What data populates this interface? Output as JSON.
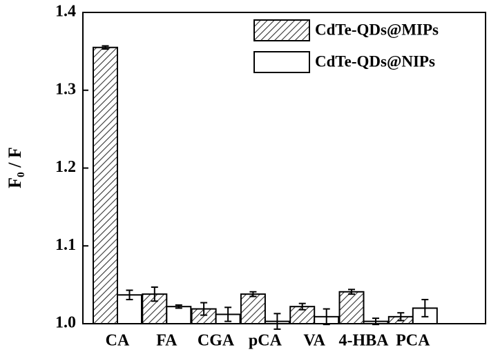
{
  "chart_data": {
    "type": "bar",
    "y_label": "F₀ / F",
    "categories": [
      "CA",
      "FA",
      "CGA",
      "pCA",
      "VA",
      "4-HBA",
      "PCA"
    ],
    "series": [
      {
        "name": "CdTe-QDs@MIPs",
        "color": "#333333",
        "hatch": true,
        "values": [
          1.355,
          1.038,
          1.019,
          1.038,
          1.022,
          1.041,
          1.009
        ],
        "errors": [
          0.002,
          0.009,
          0.008,
          0.003,
          0.004,
          0.003,
          0.005
        ]
      },
      {
        "name": "CdTe-QDs@NIPs",
        "color": "#000000",
        "hatch": false,
        "values": [
          1.037,
          1.022,
          1.012,
          1.003,
          1.009,
          1.003,
          1.02
        ],
        "errors": [
          0.006,
          0.002,
          0.009,
          0.01,
          0.01,
          0.004,
          0.011
        ]
      }
    ],
    "ylim": [
      1.0,
      1.4
    ],
    "yticks": [
      {
        "value": 1,
        "label": "1.0"
      },
      1.1,
      1.2,
      1.3,
      1.4
    ],
    "legend": "upper right"
  }
}
